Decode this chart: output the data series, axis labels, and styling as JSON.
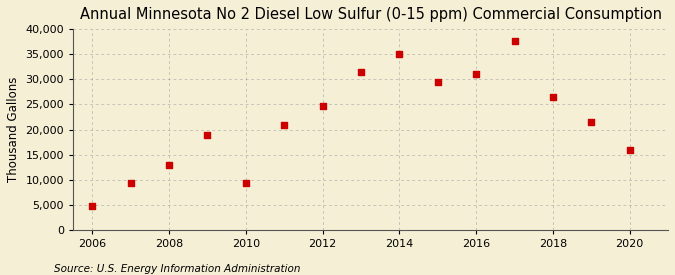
{
  "title": "Annual Minnesota No 2 Diesel Low Sulfur (0-15 ppm) Commercial Consumption",
  "ylabel": "Thousand Gallons",
  "source": "Source: U.S. Energy Information Administration",
  "years": [
    2006,
    2007,
    2008,
    2009,
    2010,
    2011,
    2012,
    2013,
    2014,
    2015,
    2016,
    2017,
    2018,
    2019,
    2020
  ],
  "values": [
    4800,
    9500,
    13000,
    19000,
    9500,
    21000,
    24700,
    31500,
    35000,
    29500,
    31000,
    37500,
    26500,
    21500,
    16000
  ],
  "marker_color": "#cc0000",
  "marker": "s",
  "marker_size": 4,
  "background_color": "#f5efd6",
  "grid_color": "#999999",
  "ylim": [
    0,
    40000
  ],
  "yticks": [
    0,
    5000,
    10000,
    15000,
    20000,
    25000,
    30000,
    35000,
    40000
  ],
  "xlim": [
    2005.5,
    2021.0
  ],
  "xticks": [
    2006,
    2008,
    2010,
    2012,
    2014,
    2016,
    2018,
    2020
  ],
  "title_fontsize": 10.5,
  "label_fontsize": 8.5,
  "tick_fontsize": 8,
  "source_fontsize": 7.5
}
